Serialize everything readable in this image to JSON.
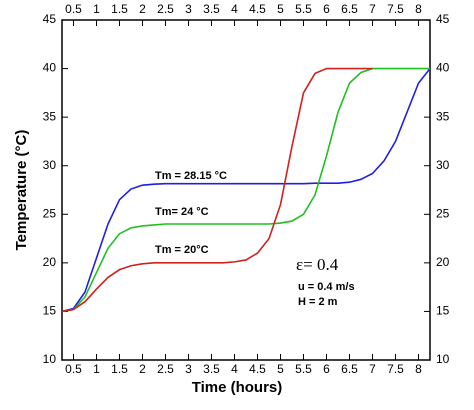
{
  "chart_data": {
    "type": "line",
    "x_label": "Time (hours)",
    "y_label": "Temperature (°C)",
    "x": [
      0.25,
      0.5,
      0.75,
      1,
      1.25,
      1.5,
      1.75,
      2,
      2.25,
      2.5,
      2.75,
      3,
      3.25,
      3.5,
      3.75,
      4,
      4.25,
      4.5,
      4.75,
      5,
      5.25,
      5.5,
      5.75,
      6,
      6.25,
      6.5,
      6.75,
      7,
      7.25,
      7.5,
      7.75,
      8,
      8.25
    ],
    "series": [
      {
        "name": "Tm = 28.15 °C",
        "color": "#2020e0",
        "values": [
          15,
          15.3,
          17,
          20.5,
          24,
          26.5,
          27.6,
          28,
          28.1,
          28.15,
          28.15,
          28.15,
          28.15,
          28.15,
          28.15,
          28.15,
          28.15,
          28.15,
          28.15,
          28.15,
          28.15,
          28.15,
          28.2,
          28.2,
          28.2,
          28.3,
          28.6,
          29.2,
          30.5,
          32.5,
          35.5,
          38.5,
          40
        ]
      },
      {
        "name": "Tm= 24 °C",
        "color": "#20c020",
        "values": [
          15,
          15.2,
          16.5,
          19,
          21.5,
          23,
          23.6,
          23.8,
          23.9,
          24,
          24,
          24,
          24,
          24,
          24,
          24,
          24,
          24,
          24,
          24.1,
          24.3,
          25,
          27,
          31,
          35.5,
          38.5,
          39.6,
          40,
          40,
          40,
          40,
          40,
          40
        ]
      },
      {
        "name": "Tm = 20°C",
        "color": "#d02020",
        "values": [
          15,
          15.2,
          16,
          17.3,
          18.5,
          19.3,
          19.7,
          19.9,
          20,
          20,
          20,
          20,
          20,
          20,
          20,
          20.1,
          20.3,
          21,
          22.5,
          26,
          32,
          37.5,
          39.5,
          40,
          40,
          40,
          40,
          40,
          null,
          null,
          null,
          null,
          null
        ]
      }
    ],
    "annotations": [
      "ε= 0.4",
      "u = 0.4 m/s",
      "H = 2 m"
    ],
    "xlim": [
      0.25,
      8.25
    ],
    "xticks": [
      0.5,
      1,
      1.5,
      2,
      2.5,
      3,
      3.5,
      4,
      4.5,
      5,
      5.5,
      6,
      6.5,
      7,
      7.5,
      8
    ],
    "ylim": [
      10,
      45
    ],
    "yticks": [
      10,
      15,
      20,
      25,
      30,
      35,
      40,
      45
    ]
  }
}
